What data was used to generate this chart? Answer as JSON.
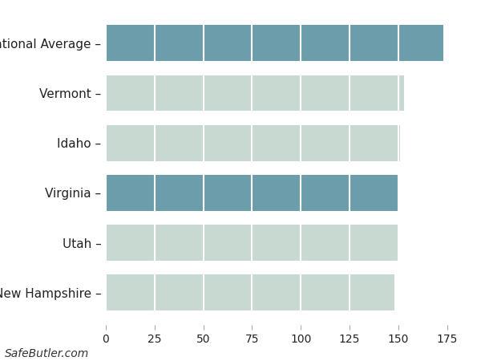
{
  "categories": [
    "New Hampshire",
    "Utah",
    "Virginia",
    "Idaho",
    "Vermont",
    "National Average"
  ],
  "values": [
    148,
    150,
    150,
    151,
    153,
    173
  ],
  "bar_colors": [
    "#c8d9d1",
    "#c8d9d1",
    "#6b9eaa",
    "#c8d9d1",
    "#c8d9d1",
    "#6b9eaa"
  ],
  "background_color": "#ffffff",
  "grid_color": "#ffffff",
  "xlim": [
    0,
    185
  ],
  "xticks": [
    0,
    25,
    50,
    75,
    100,
    125,
    150,
    175
  ],
  "footer_text": "SafeButler.com",
  "footer_fontsize": 10,
  "tick_fontsize": 10,
  "label_fontsize": 11,
  "bar_height": 0.72,
  "figwidth": 6.0,
  "figheight": 4.5,
  "dpi": 100
}
